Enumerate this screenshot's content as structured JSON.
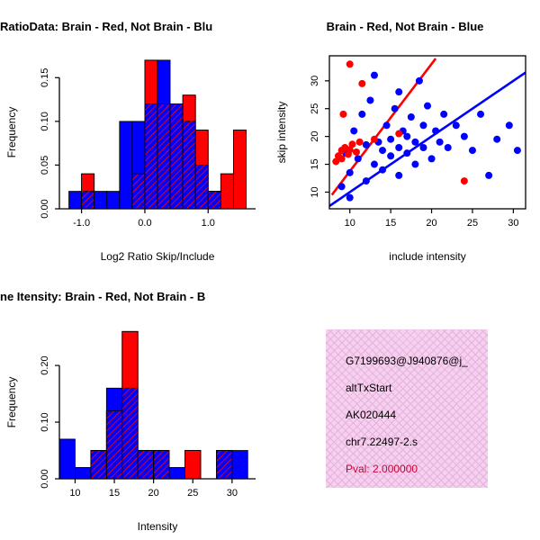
{
  "colors": {
    "red": "#ff0000",
    "blue": "#0000ff",
    "axis": "#000000"
  },
  "chart_data": [
    {
      "id": "ratio-histogram",
      "type": "bar",
      "title": "RatioData: Brain - Red, Not Brain - Blu",
      "xlabel": "Log2 Ratio Skip/Include",
      "ylabel": "Frequency",
      "xlim": [
        -1.35,
        1.75
      ],
      "ylim": [
        0,
        0.175
      ],
      "xticks": [
        -1.0,
        0.0,
        1.0
      ],
      "xtick_labels": [
        "-1.0",
        "0.0",
        "1.0"
      ],
      "yticks": [
        0,
        0.05,
        0.1,
        0.15
      ],
      "ytick_labels": [
        "0.00",
        "0.05",
        "0.10",
        "0.15"
      ],
      "bin_width": 0.2,
      "centers": [
        -1.1,
        -0.9,
        -0.7,
        -0.5,
        -0.3,
        -0.1,
        0.1,
        0.3,
        0.5,
        0.7,
        0.9,
        1.1,
        1.3,
        1.5
      ],
      "hatch_color": "#ff0000",
      "grid": false,
      "legend": "none",
      "series": [
        {
          "name": "Not Brain",
          "role": "blue",
          "color": "#0000ff",
          "values": [
            0.02,
            0.02,
            0.02,
            0.02,
            0.1,
            0.1,
            0.12,
            0.17,
            0.12,
            0.1,
            0.05,
            0.02,
            0,
            0
          ]
        },
        {
          "name": "Brain",
          "role": "red",
          "color": "#ff0000",
          "values": [
            0,
            0.04,
            0,
            0,
            0,
            0.04,
            0.17,
            0.12,
            0.12,
            0.13,
            0.09,
            0.02,
            0.04,
            0.09
          ]
        }
      ]
    },
    {
      "id": "intensity-scatter",
      "type": "scatter",
      "title": "Brain - Red, Not Brain - Blue",
      "xlabel": "include intensity",
      "ylabel": "skip intensity",
      "xlim": [
        7.5,
        31.5
      ],
      "ylim": [
        7,
        34.5
      ],
      "xticks": [
        10,
        15,
        20,
        25,
        30
      ],
      "xtick_labels": [
        "10",
        "15",
        "20",
        "25",
        "30"
      ],
      "yticks": [
        10,
        15,
        20,
        25,
        30
      ],
      "ytick_labels": [
        "10",
        "15",
        "20",
        "25",
        "30"
      ],
      "grid": false,
      "legend": "none",
      "lines": [
        {
          "name": "brain-fit-line",
          "color": "#ff0000",
          "x1": 7.8,
          "y1": 9.5,
          "x2": 20.5,
          "y2": 34.0
        },
        {
          "name": "notbrain-fit-line",
          "color": "#0000ff",
          "x1": 7.5,
          "y1": 7.5,
          "x2": 31.5,
          "y2": 31.5
        }
      ],
      "series": [
        {
          "name": "Not Brain",
          "role": "blue",
          "color": "#0000ff",
          "points": [
            [
              9,
              11
            ],
            [
              9.5,
              17
            ],
            [
              10,
              9
            ],
            [
              10,
              13.5
            ],
            [
              10.5,
              21
            ],
            [
              11,
              16
            ],
            [
              11.5,
              24
            ],
            [
              12,
              12
            ],
            [
              12,
              18.5
            ],
            [
              12.5,
              26.5
            ],
            [
              13,
              15
            ],
            [
              13,
              31
            ],
            [
              13.5,
              19
            ],
            [
              14,
              14
            ],
            [
              14,
              17.5
            ],
            [
              14.5,
              22
            ],
            [
              15,
              16.5
            ],
            [
              15,
              19.5
            ],
            [
              15.5,
              25
            ],
            [
              16,
              13
            ],
            [
              16,
              18
            ],
            [
              16,
              28
            ],
            [
              16.5,
              21
            ],
            [
              17,
              17
            ],
            [
              17,
              20
            ],
            [
              17.5,
              23.5
            ],
            [
              18,
              15
            ],
            [
              18,
              19
            ],
            [
              18.5,
              30
            ],
            [
              19,
              18
            ],
            [
              19,
              22
            ],
            [
              19.5,
              25.5
            ],
            [
              20,
              16
            ],
            [
              20.5,
              21
            ],
            [
              21,
              19
            ],
            [
              21.5,
              24
            ],
            [
              22,
              18
            ],
            [
              23,
              22
            ],
            [
              24,
              20
            ],
            [
              25,
              17.5
            ],
            [
              26,
              24
            ],
            [
              27,
              13
            ],
            [
              28,
              19.5
            ],
            [
              29.5,
              22
            ],
            [
              30.5,
              17.5
            ]
          ]
        },
        {
          "name": "Brain",
          "role": "red",
          "color": "#ff0000",
          "points": [
            [
              8.3,
              15.5
            ],
            [
              8.6,
              16.5
            ],
            [
              9,
              17.5
            ],
            [
              9,
              16
            ],
            [
              9.4,
              18
            ],
            [
              9.8,
              16.8
            ],
            [
              10,
              17.6
            ],
            [
              10.3,
              18.6
            ],
            [
              10.8,
              17.2
            ],
            [
              11.2,
              19
            ],
            [
              9.2,
              24
            ],
            [
              10,
              33
            ],
            [
              11.5,
              29.5
            ],
            [
              13,
              19.5
            ],
            [
              16,
              20.5
            ],
            [
              24,
              12
            ]
          ]
        }
      ]
    },
    {
      "id": "gene-intensity-histogram",
      "type": "bar",
      "title": "ne Itensity: Brain - Red, Not Brain - B",
      "xlabel": "Intensity",
      "ylabel": "Frequency",
      "xlim": [
        8,
        33
      ],
      "ylim": [
        0,
        0.27
      ],
      "xticks": [
        10,
        15,
        20,
        25,
        30
      ],
      "xtick_labels": [
        "10",
        "15",
        "20",
        "25",
        "30"
      ],
      "yticks": [
        0,
        0.1,
        0.2
      ],
      "ytick_labels": [
        "0.00",
        "0.10",
        "0.20"
      ],
      "bin_width": 2,
      "centers": [
        9,
        11,
        13,
        15,
        17,
        19,
        21,
        23,
        25,
        27,
        29,
        31
      ],
      "hatch_color": "#ff0000",
      "grid": false,
      "legend": "none",
      "series": [
        {
          "name": "Not Brain",
          "role": "blue",
          "color": "#0000ff",
          "values": [
            0.07,
            0.02,
            0.05,
            0.16,
            0.16,
            0.05,
            0.05,
            0.02,
            0,
            0,
            0.05,
            0.05
          ]
        },
        {
          "name": "Brain",
          "role": "red",
          "color": "#ff0000",
          "values": [
            0,
            0,
            0.05,
            0.12,
            0.26,
            0.05,
            0.05,
            0,
            0.05,
            0,
            0.05,
            0
          ]
        }
      ]
    }
  ],
  "info_panel": {
    "bg_color": "#f6d0ef",
    "hatch_color": "#e6b2dd",
    "lines": [
      "G7199693@J940876@j_",
      "altTxStart",
      "AK020444",
      "chr7.22497-2.s"
    ],
    "pval": "Pval: 2.000000",
    "pval_color": "#cc0033"
  }
}
